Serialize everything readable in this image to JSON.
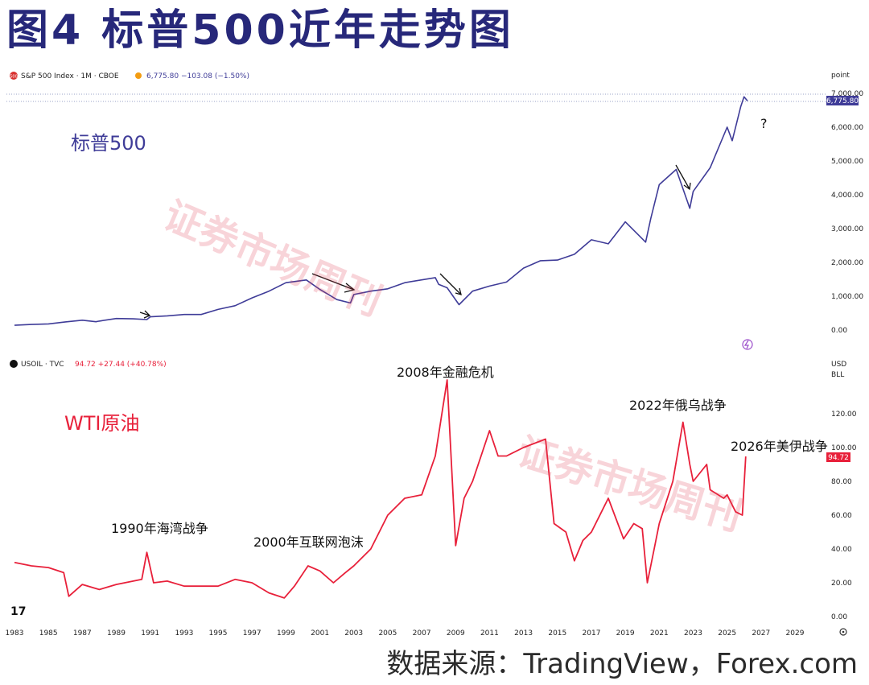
{
  "title": "图4  标普500近年走势图",
  "source": "数据来源：TradingView，Forex.com",
  "watermark": "证券市场周刊",
  "colors": {
    "title": "#27287a",
    "spx": "#3f3c98",
    "oil": "#e8203a",
    "annotation": "#111111"
  },
  "chart_data": [
    {
      "type": "line",
      "header": "S&P 500 Index · 1M · CBOE",
      "header_quote": "6,775.80  −103.08 (−1.50%)",
      "badge": "500",
      "unit_label": "point",
      "price_tag": "6,775.80",
      "series_label": "标普500",
      "annotations": [
        "?"
      ],
      "arrow_icons": [
        "down-arrow-icon",
        "down-arrow-icon",
        "down-arrow-icon",
        "right-arrow-icon"
      ],
      "ylim": [
        0,
        7000
      ],
      "yticks": [
        "7,000.00",
        "6,000.00",
        "5,000.00",
        "4,000.00",
        "3,000.00",
        "2,000.00",
        "1,000.00",
        "0.00"
      ],
      "series": [
        {
          "name": "标普500",
          "x": [
            1983,
            1984,
            1985,
            1986,
            1987,
            1987.8,
            1988,
            1989,
            1990,
            1990.8,
            1991,
            1992,
            1993,
            1994,
            1995,
            1996,
            1997,
            1998,
            1999,
            2000.2,
            2001,
            2002,
            2002.8,
            2003,
            2004,
            2005,
            2006,
            2007.8,
            2008,
            2008.5,
            2009.2,
            2010,
            2011,
            2012,
            2013,
            2014,
            2015,
            2016,
            2017,
            2018,
            2019,
            2020.2,
            2020.5,
            2021,
            2022.0,
            2022.8,
            2023,
            2024,
            2025,
            2025.3,
            2025.8,
            2026.0,
            2026.2
          ],
          "values": [
            140,
            165,
            180,
            240,
            290,
            245,
            265,
            340,
            330,
            310,
            390,
            420,
            460,
            460,
            610,
            720,
            950,
            1150,
            1400,
            1480,
            1200,
            900,
            800,
            1050,
            1150,
            1220,
            1400,
            1550,
            1350,
            1250,
            750,
            1150,
            1300,
            1420,
            1830,
            2050,
            2070,
            2240,
            2670,
            2550,
            3200,
            2600,
            3300,
            4300,
            4750,
            3600,
            4100,
            4800,
            6000,
            5600,
            6600,
            6900,
            6775
          ]
        }
      ]
    },
    {
      "type": "line",
      "header": "USOIL · TVC",
      "header_quote": "94.72  +27.44 (+40.78%)",
      "unit_label": "USD",
      "unit_sub": "BLL",
      "price_tag": "94.72",
      "series_label": "WTI原油",
      "ylim": [
        0,
        140
      ],
      "yticks": [
        "120.00",
        "100.00",
        "80.00",
        "60.00",
        "40.00",
        "20.00",
        "0.00"
      ],
      "annotations": [
        "1990年海湾战争",
        "2000年互联网泡沫",
        "2008年金融危机",
        "2022年俄乌战争",
        "2026年美伊战争"
      ],
      "x_ticks": [
        "1983",
        "1985",
        "1987",
        "1989",
        "1991",
        "1993",
        "1995",
        "1997",
        "1999",
        "2001",
        "2003",
        "2005",
        "2007",
        "2009",
        "2011",
        "2013",
        "2015",
        "2017",
        "2019",
        "2021",
        "2023",
        "2025",
        "2027",
        "2029"
      ],
      "series": [
        {
          "name": "WTI原油",
          "x": [
            1983,
            1984,
            1985,
            1985.9,
            1986.2,
            1987,
            1988,
            1989,
            1990.5,
            1990.8,
            1991.2,
            1992,
            1993,
            1994,
            1995,
            1996,
            1997,
            1998,
            1998.9,
            1999.5,
            2000.3,
            2001,
            2001.8,
            2002.5,
            2003,
            2004,
            2005,
            2006,
            2007,
            2007.8,
            2008.5,
            2009.0,
            2009.5,
            2010,
            2011,
            2011.5,
            2012,
            2013,
            2014.3,
            2014.8,
            2015.5,
            2016.0,
            2016.5,
            2017,
            2018,
            2018.9,
            2019.5,
            2020.0,
            2020.3,
            2020.7,
            2021,
            2021.8,
            2022.4,
            2022.8,
            2023,
            2023.8,
            2024,
            2024.8,
            2025.0,
            2025.5,
            2025.9,
            2026.1
          ],
          "values": [
            32,
            30,
            29,
            26,
            12,
            19,
            16,
            19,
            22,
            38,
            20,
            21,
            18,
            18,
            18,
            22,
            20,
            14,
            11,
            18,
            30,
            27,
            20,
            26,
            30,
            40,
            60,
            70,
            72,
            95,
            140,
            42,
            70,
            80,
            110,
            95,
            95,
            100,
            105,
            55,
            50,
            33,
            45,
            50,
            70,
            46,
            55,
            52,
            20,
            40,
            55,
            80,
            115,
            90,
            80,
            90,
            75,
            70,
            72,
            62,
            60,
            94.72
          ]
        }
      ]
    }
  ]
}
